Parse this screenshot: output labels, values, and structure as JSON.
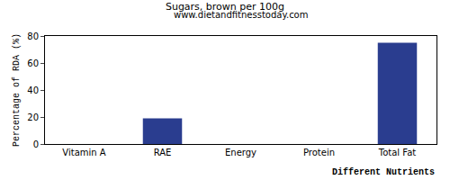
{
  "chart_data": {
    "type": "bar",
    "title": "Sugars, brown per 100g",
    "subtitle": "www.dietandfitnesstoday.com",
    "x_label": "Different Nutrients",
    "y_label": "Percentage of RDA (%)",
    "categories": [
      "Vitamin A",
      "RAE",
      "Energy",
      "Protein",
      "Total Fat"
    ],
    "values": [
      0,
      19,
      0,
      0,
      75
    ],
    "color": "#2a3d8f",
    "ylim": [
      0,
      80
    ],
    "yticks": [
      0,
      20,
      40,
      60,
      80
    ],
    "grid": false
  }
}
